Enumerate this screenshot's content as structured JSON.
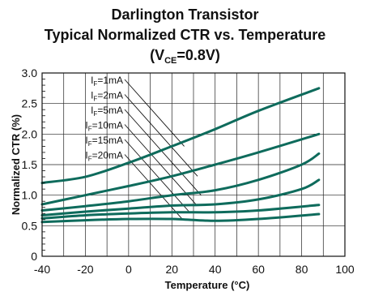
{
  "chart_data": {
    "type": "line",
    "title_line1": "Darlington Transistor",
    "title_line2": "Typical Normalized CTR vs. Temperature",
    "condition": {
      "prefix": "(V",
      "sub": "CE",
      "suffix": "=0.8V)"
    },
    "xlabel": "Temperature (°C)",
    "ylabel": "Normalized CTR (%)",
    "xlim": [
      -40,
      100
    ],
    "ylim": [
      0,
      3.0
    ],
    "xticks": [
      "-40",
      "-20",
      "0",
      "20",
      "40",
      "60",
      "80",
      "100"
    ],
    "yticks": [
      "0",
      "0.5",
      "1.0",
      "1.5",
      "2.0",
      "2.5",
      "3.0"
    ],
    "grid": true,
    "line_color": "#0e6b5c",
    "series": [
      {
        "name": "IF=1mA",
        "label_main": "I",
        "label_sub": "F",
        "label_rest": "=1mA",
        "x": [
          -40,
          -20,
          0,
          20,
          40,
          60,
          88
        ],
        "y": [
          1.2,
          1.3,
          1.53,
          1.8,
          2.08,
          2.38,
          2.75
        ]
      },
      {
        "name": "IF=2mA",
        "label_main": "I",
        "label_sub": "F",
        "label_rest": "=2mA",
        "x": [
          -40,
          -20,
          0,
          20,
          40,
          60,
          88
        ],
        "y": [
          0.85,
          1.0,
          1.15,
          1.31,
          1.5,
          1.7,
          2.0
        ]
      },
      {
        "name": "IF=5mA",
        "label_main": "I",
        "label_sub": "F",
        "label_rest": "=5mA",
        "x": [
          -40,
          -20,
          0,
          20,
          40,
          60,
          80,
          88
        ],
        "y": [
          0.75,
          0.82,
          0.9,
          1.0,
          1.08,
          1.25,
          1.5,
          1.68
        ]
      },
      {
        "name": "IF=10mA",
        "label_main": "I",
        "label_sub": "F",
        "label_rest": "=10mA",
        "x": [
          -40,
          -20,
          0,
          20,
          40,
          60,
          80,
          88
        ],
        "y": [
          0.67,
          0.73,
          0.78,
          0.83,
          0.85,
          0.93,
          1.1,
          1.25
        ]
      },
      {
        "name": "IF=15mA",
        "label_main": "I",
        "label_sub": "F",
        "label_rest": "=15mA",
        "x": [
          -40,
          -20,
          0,
          20,
          40,
          60,
          88
        ],
        "y": [
          0.62,
          0.67,
          0.7,
          0.72,
          0.72,
          0.75,
          0.84
        ]
      },
      {
        "name": "IF=20mA",
        "label_main": "I",
        "label_sub": "F",
        "label_rest": "=20mA",
        "x": [
          -40,
          -20,
          0,
          20,
          40,
          60,
          88
        ],
        "y": [
          0.56,
          0.59,
          0.61,
          0.61,
          0.58,
          0.61,
          0.69
        ]
      }
    ]
  }
}
